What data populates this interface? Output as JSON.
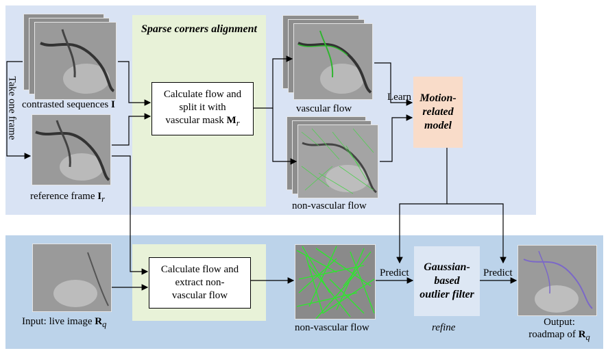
{
  "top_panel": {
    "stage_title": "Sparse corners alignment",
    "take_one_frame": "Take one frame",
    "contrasted_label": "contrasted sequences ",
    "contrasted_symbol": "I",
    "reference_label": "reference frame ",
    "reference_symbol": "I",
    "reference_sub": "r",
    "calc_box": {
      "line1": "Calculate flow and",
      "line2": "split it with",
      "line3": "vascular mask ",
      "symbol": "M",
      "sub": "r"
    },
    "vascular_flow": "vascular flow",
    "non_vascular_flow": "non-vascular flow",
    "learn": "Learn",
    "model": {
      "line1": "Motion-",
      "line2": "related",
      "line3": "model"
    }
  },
  "bottom_panel": {
    "input_label": "Input: live image ",
    "input_symbol": "R",
    "input_sub": "q",
    "calc_box": {
      "line1": "Calculate flow and",
      "line2": "extract non-",
      "line3": "vascular flow"
    },
    "non_vascular_flow": "non-vascular flow",
    "predict_left": "Predict",
    "predict_right": "Predict",
    "filter": {
      "line1": "Gaussian-",
      "line2": "based",
      "line3": "outlier filter"
    },
    "refine": "refine",
    "output_line1": "Output:",
    "output_line2": "roadmap of ",
    "output_symbol": "R",
    "output_sub": "q"
  },
  "colors": {
    "top_panel": "#d9e3f4",
    "bottom_panel": "#bcd3ea",
    "green_stage": "#e8f2d8",
    "model_box": "#f9dcc9",
    "filter_box": "#dde7f4",
    "flow_green": "#22cc22",
    "roadmap_purple": "#7b68c8"
  }
}
